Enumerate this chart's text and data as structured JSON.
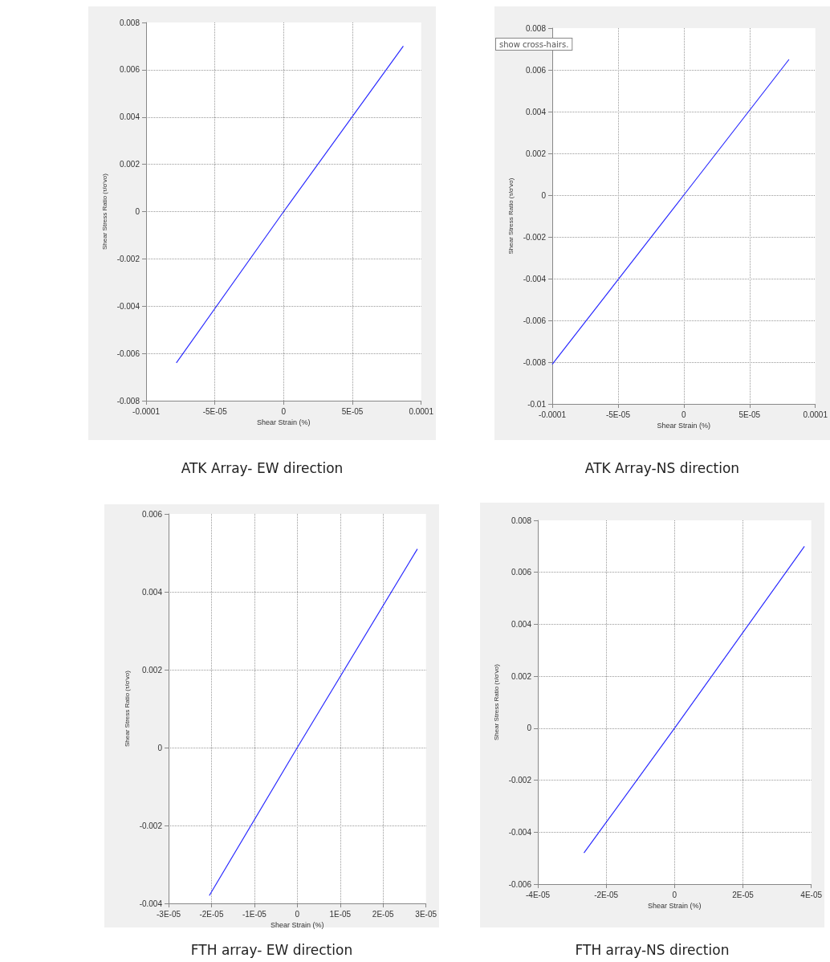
{
  "chart_data": [
    {
      "type": "line",
      "title": "ATK Array- EW direction",
      "xlabel": "Shear Strain (%)",
      "ylabel": "Shear Stress Ratio (τ/σ'vo)",
      "series": [
        {
          "color": "#2b2bff",
          "x": [
            -7.8e-05,
            0,
            8.7e-05
          ],
          "values": [
            -0.0064,
            0,
            0.007
          ]
        }
      ],
      "xlim": [
        -0.0001,
        0.0001
      ],
      "xticks": [
        -0.0001,
        {
          "value": -5e-05,
          "label": "-5E-05"
        },
        0,
        {
          "value": 5e-05,
          "label": "5E-05"
        },
        0.0001
      ],
      "ylim": [
        -0.008,
        0.008
      ],
      "yticks": [
        -0.008,
        -0.006,
        -0.004,
        -0.002,
        0,
        0.002,
        0.004,
        0.006,
        0.008
      ],
      "grid": true
    },
    {
      "type": "line",
      "title": "ATK Array-NS direction",
      "xlabel": "Shear Strain (%)",
      "ylabel": "Shear Stress Ratio (τ/σ'vo)",
      "annotations": [
        "show cross-hairs."
      ],
      "series": [
        {
          "color": "#2b2bff",
          "x": [
            -0.0001,
            0,
            8e-05
          ],
          "values": [
            -0.0081,
            0,
            0.0065
          ]
        }
      ],
      "xlim": [
        -0.0001,
        0.0001
      ],
      "xticks": [
        -0.0001,
        {
          "value": -5e-05,
          "label": "-5E-05"
        },
        0,
        {
          "value": 5e-05,
          "label": "5E-05"
        },
        0.0001
      ],
      "ylim": [
        -0.01,
        0.008
      ],
      "yticks": [
        -0.01,
        -0.008,
        -0.006,
        -0.004,
        -0.002,
        0,
        0.002,
        0.004,
        0.006,
        0.008
      ],
      "grid": true
    },
    {
      "type": "line",
      "title": "FTH array- EW direction",
      "xlabel": "Shear Strain (%)",
      "ylabel": "Shear Stress Ratio (τ/σ'vo)",
      "series": [
        {
          "color": "#2b2bff",
          "x": [
            -2.05e-05,
            0,
            2.8e-05
          ],
          "values": [
            -0.0038,
            0,
            0.0051
          ]
        }
      ],
      "xlim": [
        -3e-05,
        3e-05
      ],
      "xticks": [
        {
          "value": -3e-05,
          "label": "-3E-05"
        },
        {
          "value": -2e-05,
          "label": "-2E-05"
        },
        {
          "value": -1e-05,
          "label": "-1E-05"
        },
        0,
        {
          "value": 1e-05,
          "label": "1E-05"
        },
        {
          "value": 2e-05,
          "label": "2E-05"
        },
        {
          "value": 3e-05,
          "label": "3E-05"
        }
      ],
      "ylim": [
        -0.004,
        0.006
      ],
      "yticks": [
        -0.004,
        -0.002,
        0,
        0.002,
        0.004,
        0.006
      ],
      "grid": true
    },
    {
      "type": "line",
      "title": "FTH array-NS direction",
      "xlabel": "Shear Strain (%)",
      "ylabel": "Shear Stress Ratio (τ/σ'vo)",
      "series": [
        {
          "color": "#2b2bff",
          "x": [
            -2.65e-05,
            0,
            3.8e-05
          ],
          "values": [
            -0.0048,
            0,
            0.007
          ]
        }
      ],
      "xlim": [
        -4e-05,
        4e-05
      ],
      "xticks": [
        {
          "value": -4e-05,
          "label": "-4E-05"
        },
        {
          "value": -2e-05,
          "label": "-2E-05"
        },
        0,
        {
          "value": 2e-05,
          "label": "2E-05"
        },
        {
          "value": 4e-05,
          "label": "4E-05"
        }
      ],
      "ylim": [
        -0.006,
        0.008
      ],
      "yticks": [
        -0.006,
        -0.004,
        -0.002,
        0,
        0.002,
        0.004,
        0.006,
        0.008
      ],
      "grid": true
    }
  ]
}
